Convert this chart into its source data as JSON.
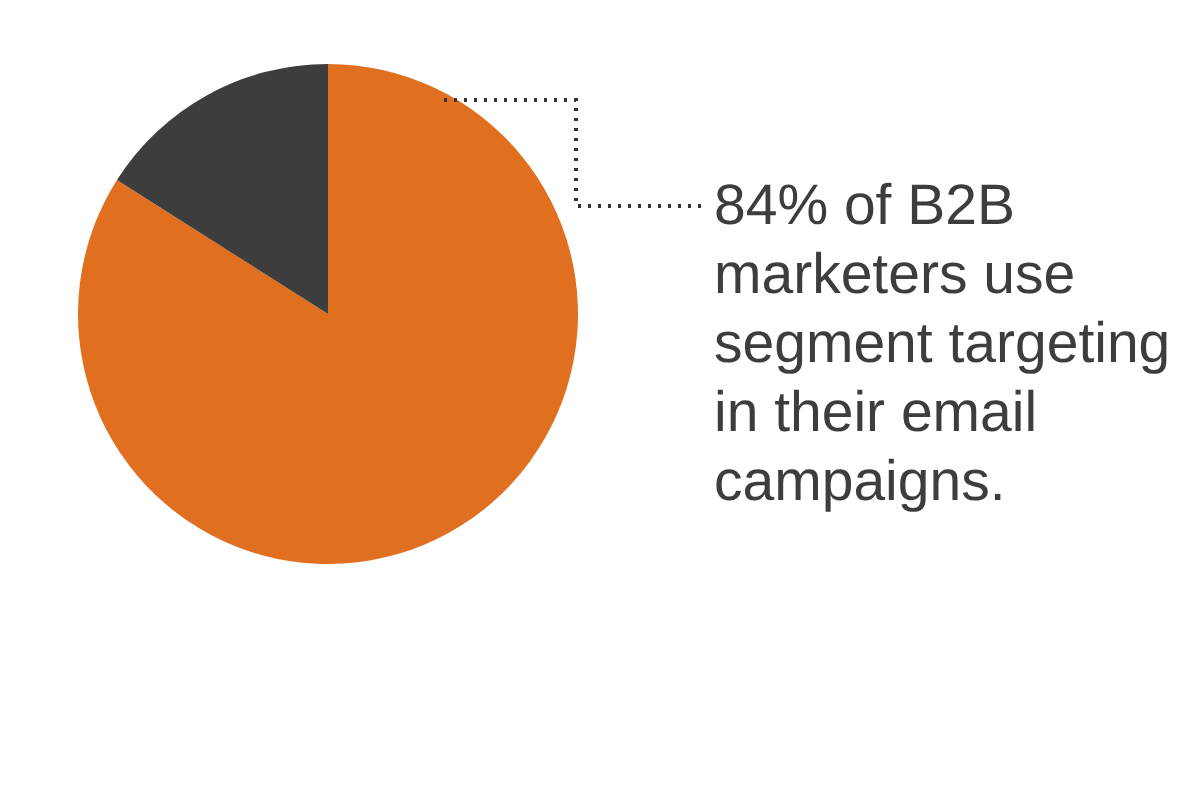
{
  "chart_data": {
    "type": "pie",
    "categories": [
      null,
      null
    ],
    "values": [
      84,
      16
    ],
    "colors": [
      "#e07020",
      "#3d3d3d"
    ],
    "annotations": [
      "84% of B2B marketers use segment targeting in their email campaigns."
    ]
  }
}
